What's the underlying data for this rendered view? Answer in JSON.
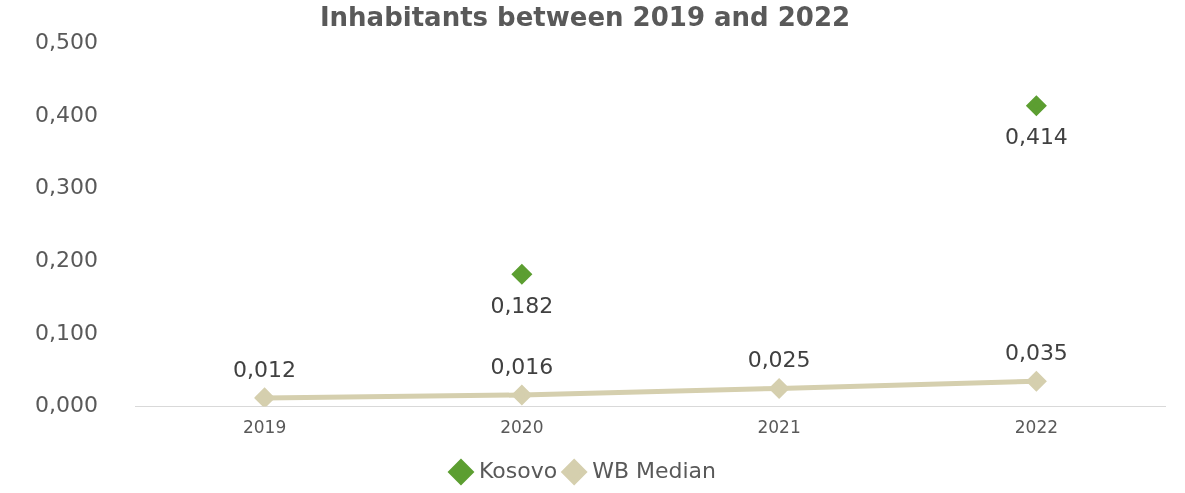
{
  "chart_data": {
    "type": "line",
    "title": "Inhabitants between 2019 and 2022",
    "categories": [
      "2019",
      "2020",
      "2021",
      "2022"
    ],
    "series": [
      {
        "name": "Kosovo",
        "type": "scatter",
        "color": "#5c9e31",
        "values": [
          null,
          0.182,
          null,
          0.414
        ],
        "value_labels": [
          null,
          "0,182",
          null,
          "0,414"
        ]
      },
      {
        "name": "WB Median",
        "color": "#d5cfae",
        "values": [
          0.012,
          0.016,
          0.025,
          0.035
        ],
        "value_labels": [
          "0,012",
          "0,016",
          "0,025",
          "0,035"
        ]
      }
    ],
    "ylim": [
      0,
      0.5
    ],
    "yticks": [
      {
        "value": 0,
        "label": "0,000"
      },
      {
        "value": 0.1,
        "label": "0,100"
      },
      {
        "value": 0.2,
        "label": "0,200"
      },
      {
        "value": 0.3,
        "label": "0,300"
      },
      {
        "value": 0.4,
        "label": "0,400"
      },
      {
        "value": 0.5,
        "label": "0,500"
      }
    ],
    "legend": "bottom",
    "marker": "diamond"
  }
}
